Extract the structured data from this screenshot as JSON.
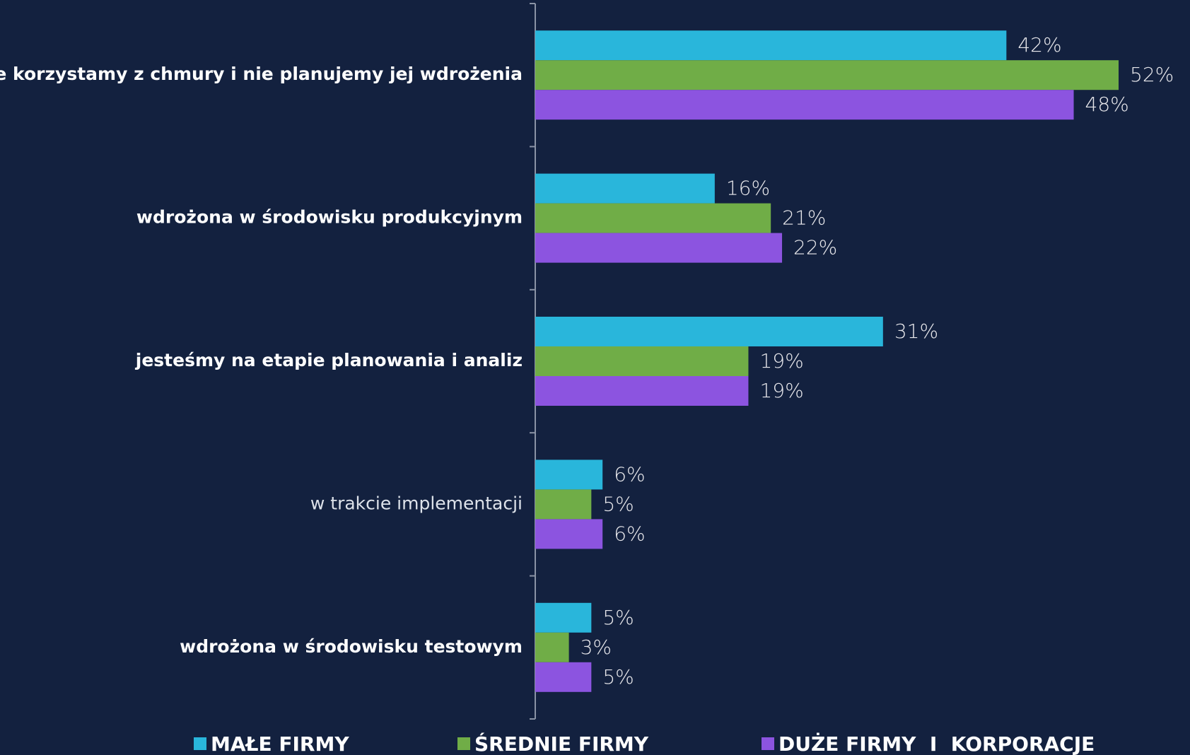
{
  "chart_data": {
    "type": "bar",
    "orientation": "horizontal",
    "categories": [
      "nie korzystamy z chmury i nie planujemy jej wdrożenia",
      "wdrożona w środowisku produkcyjnym",
      "jesteśmy na etapie planowania i analiz",
      "w trakcie implementacji",
      "wdrożona w środowisku testowym"
    ],
    "series": [
      {
        "name": "MAŁE FIRMY",
        "color": "#29b6db",
        "values": [
          42,
          16,
          31,
          6,
          5
        ],
        "value_labels": [
          "42%",
          "16%",
          "31%",
          "6%",
          "5%"
        ]
      },
      {
        "name": "ŚREDNIE FIRMY",
        "color": "#70ad47",
        "values": [
          52,
          21,
          19,
          5,
          3
        ],
        "value_labels": [
          "52%",
          "21%",
          "19%",
          "5%",
          "3%"
        ]
      },
      {
        "name": "DUŻE FIRMY  I  KORPORACJE",
        "color": "#8c54e0",
        "values": [
          48,
          22,
          19,
          6,
          5
        ],
        "value_labels": [
          "48%",
          "22%",
          "19%",
          "6%",
          "5%"
        ]
      }
    ],
    "legend": "bottom"
  }
}
